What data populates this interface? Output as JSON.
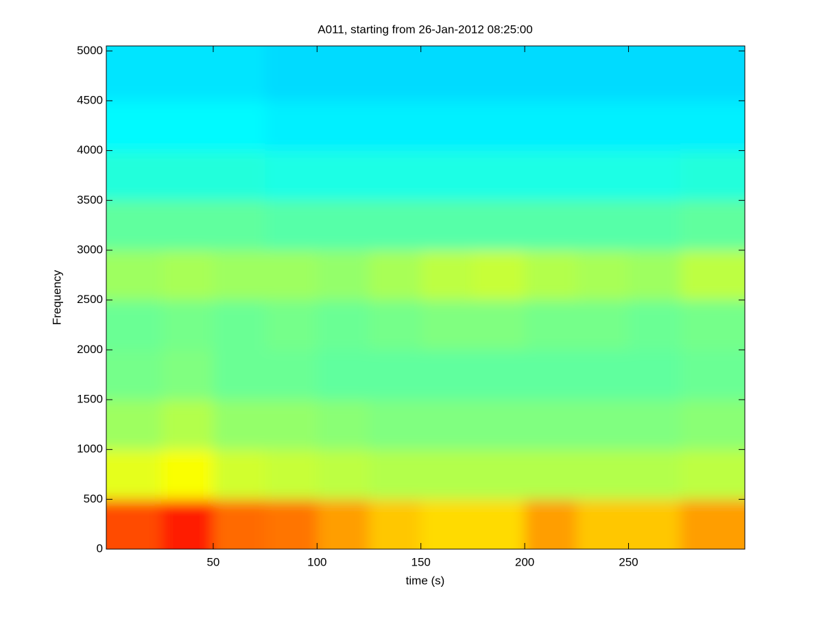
{
  "chart_data": {
    "type": "heatmap",
    "title": "A011, starting from 26-Jan-2012 08:25:00",
    "x_label": "time (s)",
    "y_label": "Frequency",
    "colormap": "jet",
    "clim": [
      0,
      1
    ],
    "xbins": [
      0,
      25,
      50,
      75,
      100,
      125,
      150,
      175,
      200,
      225,
      250,
      275,
      306
    ],
    "ybins": [
      0,
      500,
      1000,
      1500,
      2000,
      2500,
      3000,
      3500,
      4000,
      4500,
      5050
    ],
    "values": [
      [
        0.8,
        0.85,
        0.77,
        0.76,
        0.72,
        0.68,
        0.66,
        0.66,
        0.72,
        0.68,
        0.68,
        0.72
      ],
      [
        0.6,
        0.62,
        0.58,
        0.57,
        0.56,
        0.55,
        0.55,
        0.55,
        0.55,
        0.55,
        0.55,
        0.56
      ],
      [
        0.53,
        0.55,
        0.52,
        0.52,
        0.51,
        0.5,
        0.5,
        0.5,
        0.5,
        0.5,
        0.5,
        0.51
      ],
      [
        0.49,
        0.5,
        0.48,
        0.48,
        0.47,
        0.47,
        0.47,
        0.47,
        0.47,
        0.47,
        0.47,
        0.48
      ],
      [
        0.48,
        0.49,
        0.48,
        0.49,
        0.48,
        0.49,
        0.5,
        0.5,
        0.49,
        0.49,
        0.48,
        0.49
      ],
      [
        0.53,
        0.54,
        0.53,
        0.53,
        0.52,
        0.54,
        0.56,
        0.57,
        0.55,
        0.54,
        0.53,
        0.56
      ],
      [
        0.47,
        0.47,
        0.47,
        0.46,
        0.46,
        0.46,
        0.46,
        0.46,
        0.46,
        0.46,
        0.46,
        0.47
      ],
      [
        0.41,
        0.41,
        0.41,
        0.4,
        0.4,
        0.4,
        0.4,
        0.4,
        0.4,
        0.4,
        0.4,
        0.41
      ],
      [
        0.37,
        0.37,
        0.37,
        0.36,
        0.36,
        0.36,
        0.36,
        0.36,
        0.36,
        0.36,
        0.36,
        0.36
      ],
      [
        0.35,
        0.35,
        0.35,
        0.34,
        0.34,
        0.34,
        0.34,
        0.34,
        0.34,
        0.34,
        0.34,
        0.34
      ]
    ],
    "xlim": [
      -1.5,
      306
    ],
    "ylim": [
      0,
      5050
    ],
    "xticks": [
      50,
      100,
      150,
      200,
      250
    ],
    "yticks": [
      0,
      500,
      1000,
      1500,
      2000,
      2500,
      3000,
      3500,
      4000,
      4500,
      5000
    ]
  }
}
